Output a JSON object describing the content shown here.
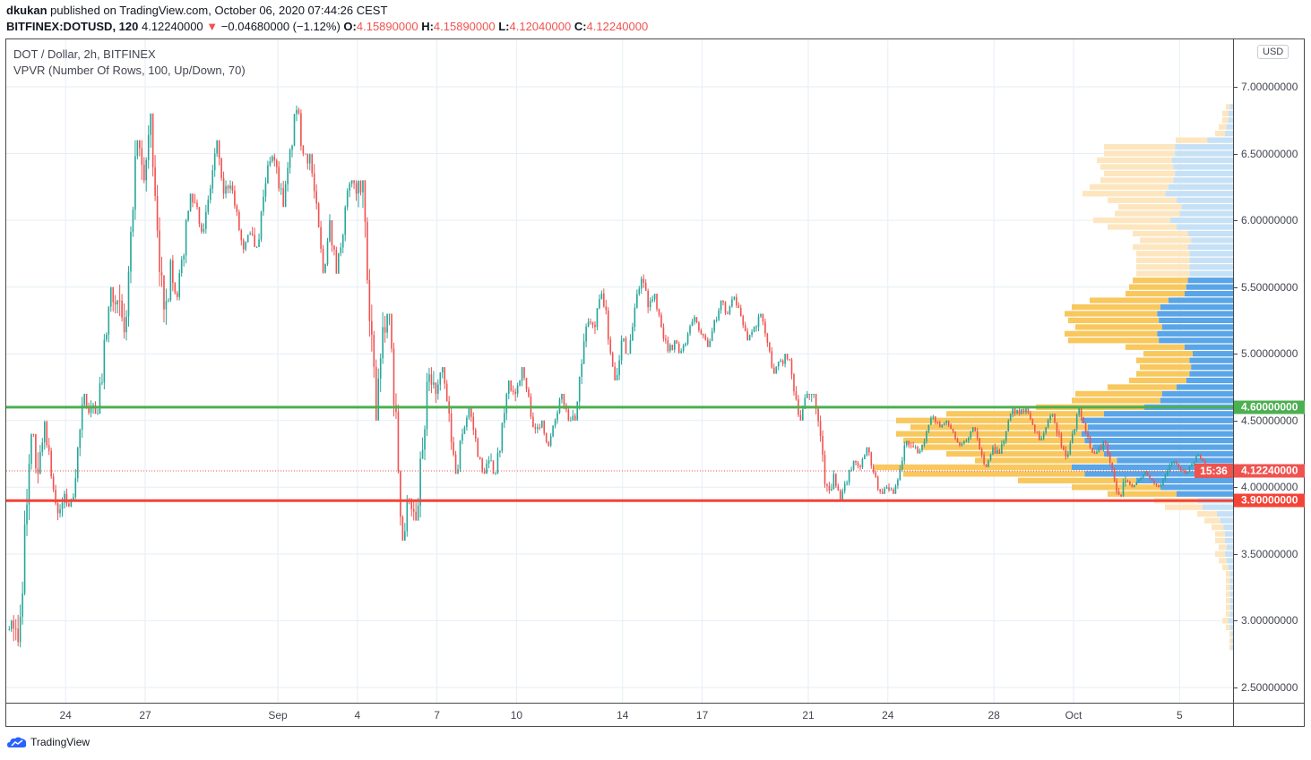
{
  "header": {
    "author": "dkukan",
    "published": "published on TradingView.com, October 06, 2020 07:44:26 CEST",
    "symbol": "BITFINEX:DOTUSD, 120",
    "last": "4.12240000",
    "direction_icon": "triangle-down-icon",
    "change": "−0.04680000 (−1.12%)",
    "o_label": "O:",
    "o": "4.15890000",
    "h_label": "H:",
    "h": "4.15890000",
    "l_label": "L:",
    "l": "4.12040000",
    "c_label": "C:",
    "c": "4.12240000"
  },
  "legend": {
    "title": "DOT / Dollar, 2h, BITFINEX",
    "indicator": "VPVR (Number Of Rows, 100, Up/Down, 70)"
  },
  "currency": "USD",
  "tags": {
    "green_line": "4.60000000",
    "last_price": "4.12240000",
    "countdown": "15:36",
    "red_line": "3.90000000"
  },
  "footer": {
    "brand": "TradingView"
  },
  "colors": {
    "up": "#26a69a",
    "down": "#ef5350",
    "green_line": "#4caf50",
    "red_line": "#f44336",
    "vp_up": "#5aa5e8",
    "vp_down": "#f8c85e",
    "vp_up_out": "#c6e1f6",
    "vp_down_out": "#fde6bf"
  },
  "chart_data": {
    "type": "candlestick",
    "interval": "2h",
    "ylim": [
      2.5,
      7.0
    ],
    "y_ticks": [
      "7.00000000",
      "6.50000000",
      "6.00000000",
      "5.50000000",
      "5.00000000",
      "4.50000000",
      "4.00000000",
      "3.50000000",
      "3.00000000",
      "2.50000000"
    ],
    "x_ticks": [
      {
        "label": "24",
        "date": "2020-08-24"
      },
      {
        "label": "27",
        "date": "2020-08-27"
      },
      {
        "label": "Sep",
        "date": "2020-09-01"
      },
      {
        "label": "4",
        "date": "2020-09-04"
      },
      {
        "label": "7",
        "date": "2020-09-07"
      },
      {
        "label": "10",
        "date": "2020-09-10"
      },
      {
        "label": "14",
        "date": "2020-09-14"
      },
      {
        "label": "17",
        "date": "2020-09-17"
      },
      {
        "label": "21",
        "date": "2020-09-21"
      },
      {
        "label": "24",
        "date": "2020-09-24"
      },
      {
        "label": "28",
        "date": "2020-09-28"
      },
      {
        "label": "Oct",
        "date": "2020-10-01"
      },
      {
        "label": "5",
        "date": "2020-10-05"
      }
    ],
    "grid": true,
    "horizontal_lines": [
      {
        "price": 4.6,
        "color": "#4caf50",
        "style": "solid"
      },
      {
        "price": 3.9,
        "color": "#f44336",
        "style": "solid"
      },
      {
        "price": 4.1224,
        "color": "#ef5350",
        "style": "dotted"
      }
    ],
    "daily_ohlc": [
      [
        "2020-08-21",
        3.2,
        3.25,
        2.9,
        3.0
      ],
      [
        "2020-08-22",
        3.0,
        4.4,
        2.8,
        4.1
      ],
      [
        "2020-08-23",
        4.1,
        4.5,
        3.75,
        3.95
      ],
      [
        "2020-08-24",
        3.95,
        4.7,
        3.85,
        4.6
      ],
      [
        "2020-08-25",
        4.6,
        5.5,
        4.55,
        5.4
      ],
      [
        "2020-08-26",
        5.4,
        6.6,
        5.1,
        6.3
      ],
      [
        "2020-08-27",
        6.3,
        6.8,
        5.2,
        5.7
      ],
      [
        "2020-08-28",
        5.7,
        6.2,
        5.4,
        6.1
      ],
      [
        "2020-08-29",
        6.1,
        6.6,
        5.9,
        6.2
      ],
      [
        "2020-08-30",
        6.2,
        6.3,
        5.75,
        5.9
      ],
      [
        "2020-08-31",
        5.9,
        6.5,
        5.8,
        6.4
      ],
      [
        "2020-09-01",
        6.4,
        6.86,
        6.1,
        6.5
      ],
      [
        "2020-09-02",
        6.5,
        6.5,
        5.6,
        6.0
      ],
      [
        "2020-09-03",
        6.0,
        6.3,
        5.6,
        6.2
      ],
      [
        "2020-09-04",
        6.2,
        6.3,
        4.5,
        5.2
      ],
      [
        "2020-09-05",
        5.2,
        5.3,
        3.6,
        3.9
      ],
      [
        "2020-09-06",
        3.9,
        4.9,
        3.75,
        4.7
      ],
      [
        "2020-09-07",
        4.7,
        4.9,
        4.1,
        4.4
      ],
      [
        "2020-09-08",
        4.4,
        4.6,
        4.1,
        4.2
      ],
      [
        "2020-09-09",
        4.2,
        4.8,
        4.1,
        4.7
      ],
      [
        "2020-09-10",
        4.7,
        4.9,
        4.4,
        4.5
      ],
      [
        "2020-09-11",
        4.5,
        4.7,
        4.3,
        4.5
      ],
      [
        "2020-09-12",
        4.5,
        5.3,
        4.5,
        5.2
      ],
      [
        "2020-09-13",
        5.2,
        5.5,
        4.8,
        5.1
      ],
      [
        "2020-09-14",
        5.1,
        5.6,
        5.0,
        5.35
      ],
      [
        "2020-09-15",
        5.35,
        5.45,
        5.0,
        5.1
      ],
      [
        "2020-09-16",
        5.1,
        5.3,
        5.0,
        5.15
      ],
      [
        "2020-09-17",
        5.15,
        5.4,
        5.05,
        5.3
      ],
      [
        "2020-09-18",
        5.3,
        5.45,
        5.1,
        5.2
      ],
      [
        "2020-09-19",
        5.2,
        5.3,
        4.85,
        4.95
      ],
      [
        "2020-09-20",
        4.95,
        5.0,
        4.5,
        4.7
      ],
      [
        "2020-09-21",
        4.7,
        4.7,
        3.95,
        4.1
      ],
      [
        "2020-09-22",
        4.1,
        4.2,
        3.9,
        4.15
      ],
      [
        "2020-09-23",
        4.15,
        4.3,
        3.95,
        4.0
      ],
      [
        "2020-09-24",
        4.0,
        4.35,
        3.95,
        4.3
      ],
      [
        "2020-09-25",
        4.3,
        4.55,
        4.25,
        4.45
      ],
      [
        "2020-09-26",
        4.45,
        4.5,
        4.3,
        4.35
      ],
      [
        "2020-09-27",
        4.35,
        4.45,
        4.15,
        4.3
      ],
      [
        "2020-09-28",
        4.3,
        4.6,
        4.25,
        4.55
      ],
      [
        "2020-09-29",
        4.55,
        4.6,
        4.35,
        4.45
      ],
      [
        "2020-09-30",
        4.45,
        4.55,
        4.2,
        4.4
      ],
      [
        "2020-10-01",
        4.4,
        4.6,
        4.25,
        4.3
      ],
      [
        "2020-10-02",
        4.3,
        4.35,
        3.92,
        4.05
      ],
      [
        "2020-10-03",
        4.05,
        4.12,
        4.0,
        4.05
      ],
      [
        "2020-10-04",
        4.05,
        4.2,
        4.0,
        4.15
      ],
      [
        "2020-10-05",
        4.15,
        4.25,
        4.1,
        4.17
      ],
      [
        "2020-10-06",
        4.17,
        4.17,
        4.12,
        4.1224
      ]
    ],
    "volume_profile": {
      "row_start": 2.8,
      "row_step": 0.05,
      "value_area": [
        3.95,
        5.55
      ],
      "up_fraction": 0.45,
      "relative_volume": [
        1,
        1,
        1,
        2,
        3,
        2,
        2,
        2,
        2,
        2,
        2,
        2,
        3,
        4,
        5,
        4,
        5,
        5,
        6,
        8,
        10,
        19,
        22,
        35,
        45,
        60,
        92,
        100,
        72,
        80,
        87,
        92,
        94,
        90,
        94,
        80,
        55,
        45,
        44,
        35,
        29,
        27,
        26,
        27,
        25,
        30,
        46,
        47,
        44,
        46,
        47,
        45,
        40,
        30,
        29,
        28,
        27,
        27,
        27,
        27,
        28,
        26,
        28,
        35,
        39,
        33,
        32,
        35,
        42,
        40,
        37,
        36,
        37,
        38,
        36,
        36,
        16,
        5,
        4,
        3,
        3,
        2
      ]
    }
  }
}
